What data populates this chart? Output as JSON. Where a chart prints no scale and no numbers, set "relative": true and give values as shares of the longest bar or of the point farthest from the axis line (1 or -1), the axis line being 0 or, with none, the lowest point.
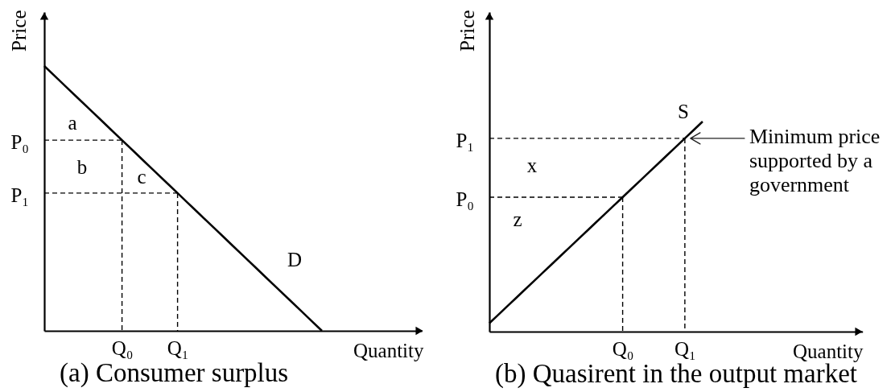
{
  "chart_data": [
    {
      "type": "line",
      "title": "(a) Consumer surplus",
      "xlabel": "Quantity",
      "ylabel": "Price",
      "relative": true,
      "categories": [
        null,
        null,
        null,
        null,
        null,
        null,
        null,
        "Q₀",
        null,
        null,
        null,
        null,
        "Q₁",
        null,
        null,
        null,
        null,
        null,
        null,
        null,
        null,
        null,
        null,
        null,
        null,
        null,
        null,
        null,
        null,
        null,
        null,
        null,
        null,
        null,
        null
      ],
      "series": [
        {
          "name": "D",
          "color": "#000000",
          "values": [
            1,
            0.96,
            0.92,
            0.88,
            0.84,
            0.8,
            0.76,
            0.72,
            0.68,
            0.64,
            0.6,
            0.56,
            0.52,
            0.48,
            0.44,
            0.4,
            0.36,
            0.32,
            0.28,
            0.24,
            0.2,
            0.16,
            0.12,
            0.08,
            0.04,
            0,
            null,
            null,
            null,
            null,
            null,
            null,
            null,
            null,
            null
          ]
        },
        {
          "color": "#000000",
          "line_style": "dashed",
          "values": [
            0.72,
            0.72,
            0.72,
            0.72,
            0.72,
            0.72,
            0.72,
            0.72,
            null,
            null,
            null,
            null,
            null,
            null,
            null,
            null,
            null,
            null,
            null,
            null,
            null,
            null,
            null,
            null,
            null,
            null,
            null,
            null,
            null,
            null,
            null,
            null,
            null,
            null,
            null
          ]
        },
        {
          "color": "#000000",
          "line_style": "dashed",
          "x": [
            "Q₀",
            "Q₀"
          ],
          "values": [
            0.72,
            0
          ]
        },
        {
          "color": "#000000",
          "line_style": "dashed",
          "values": [
            0.52,
            0.52,
            0.52,
            0.52,
            0.52,
            0.52,
            0.52,
            0.52,
            0.52,
            0.52,
            0.52,
            0.52,
            0.52,
            null,
            null,
            null,
            null,
            null,
            null,
            null,
            null,
            null,
            null,
            null,
            null,
            null,
            null,
            null,
            null,
            null,
            null,
            null,
            null,
            null,
            null
          ]
        },
        {
          "color": "#000000",
          "line_style": "dashed",
          "x": [
            "Q₁",
            "Q₁"
          ],
          "values": [
            0.52,
            0
          ]
        }
      ],
      "annotations": [
        "P₀",
        "P₁",
        "a",
        "b",
        "c"
      ]
    },
    {
      "type": "line",
      "title": "(b) Quasirent in the output market",
      "xlabel": "Quantity",
      "ylabel": "Price",
      "relative": true,
      "categories": [
        null,
        null,
        null,
        null,
        null,
        null,
        null,
        null,
        null,
        null,
        null,
        null,
        null,
        null,
        null,
        "Q₀",
        null,
        null,
        null,
        null,
        null,
        null,
        "Q₁",
        null,
        null,
        null,
        null,
        null,
        null,
        null,
        null,
        null,
        null,
        null,
        null,
        null,
        null,
        null,
        null,
        null,
        null,
        null,
        null
      ],
      "series": [
        {
          "name": "S",
          "color": "#000000",
          "values": [
            0.04,
            0.08,
            0.12,
            0.16,
            0.2,
            0.24,
            0.28,
            0.32,
            0.36,
            0.4,
            0.44,
            0.48,
            0.52,
            0.56,
            0.6,
            0.64,
            0.68,
            0.72,
            0.76,
            0.8,
            0.84,
            0.88,
            0.92,
            0.96,
            1,
            null,
            null,
            null,
            null,
            null,
            null,
            null,
            null,
            null,
            null,
            null,
            null,
            null,
            null,
            null,
            null,
            null,
            null
          ]
        },
        {
          "color": "#000000",
          "line_style": "dashed",
          "values": [
            0.64,
            0.64,
            0.64,
            0.64,
            0.64,
            0.64,
            0.64,
            0.64,
            0.64,
            0.64,
            0.64,
            0.64,
            0.64,
            0.64,
            0.64,
            0.64,
            null,
            null,
            null,
            null,
            null,
            null,
            null,
            null,
            null,
            null,
            null,
            null,
            null,
            null,
            null,
            null,
            null,
            null,
            null,
            null,
            null,
            null,
            null,
            null,
            null,
            null,
            null
          ]
        },
        {
          "color": "#000000",
          "line_style": "dashed",
          "x": [
            "Q₀",
            "Q₀"
          ],
          "values": [
            0.64,
            0
          ]
        },
        {
          "color": "#000000",
          "line_style": "dashed",
          "values": [
            0.92,
            0.92,
            0.92,
            0.92,
            0.92,
            0.92,
            0.92,
            0.92,
            0.92,
            0.92,
            0.92,
            0.92,
            0.92,
            0.92,
            0.92,
            0.92,
            0.92,
            0.92,
            0.92,
            0.92,
            0.92,
            0.92,
            0.92,
            null,
            null,
            null,
            null,
            null,
            null,
            null,
            null,
            null,
            null,
            null,
            null,
            null,
            null,
            null,
            null,
            null,
            null,
            null,
            null
          ]
        },
        {
          "color": "#000000",
          "line_style": "dashed",
          "x": [
            "Q₁",
            "Q₁"
          ],
          "values": [
            0.92,
            0
          ]
        }
      ],
      "annotations": [
        "P₁",
        "P₀",
        "x",
        "z",
        {
          "text": "Minimum price supported by a government",
          "x": "Q₁",
          "y": 0.92
        }
      ]
    }
  ]
}
